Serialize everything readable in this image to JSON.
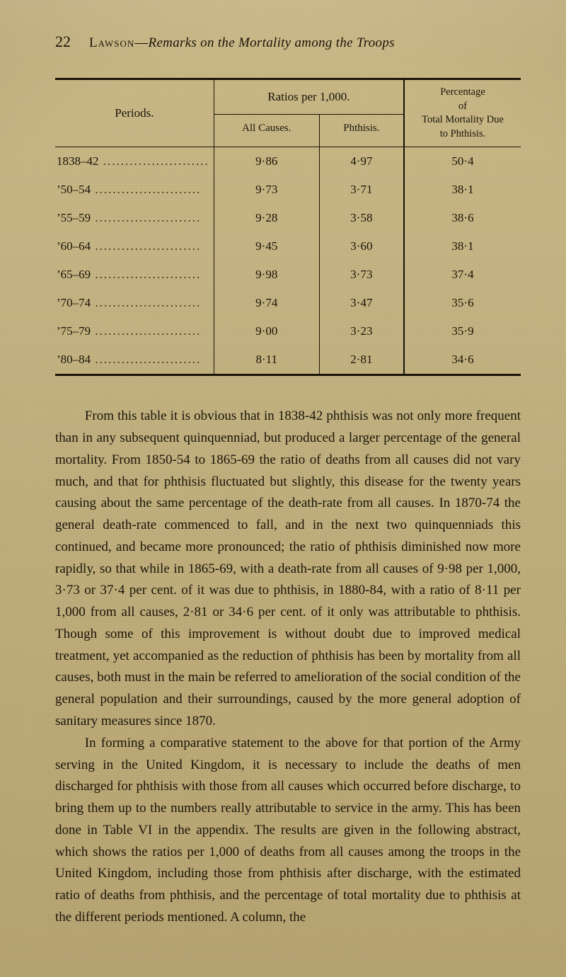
{
  "page_number": "22",
  "running_head": {
    "author_sc": "Lawson",
    "dash": "—",
    "title_italic": "Remarks on the Mortality among the Troops"
  },
  "table": {
    "type": "table",
    "background_color": "transparent",
    "border_color": "#1b1408",
    "font_size_body": 17,
    "font_size_header_small": 15,
    "columns": [
      {
        "key": "period",
        "label": "Periods.",
        "align": "left"
      },
      {
        "key": "all_causes",
        "label": "All Causes.",
        "group": "ratios",
        "align": "center"
      },
      {
        "key": "phthisis",
        "label": "Phthisis.",
        "group": "ratios",
        "align": "center"
      },
      {
        "key": "pct",
        "label_lines": [
          "Percentage",
          "of",
          "Total Mortality Due",
          "to Phthisis."
        ],
        "align": "center"
      }
    ],
    "group_header": "Ratios per 1,000.",
    "rows": [
      {
        "period": "1838–42",
        "all_causes": "9·86",
        "phthisis": "4·97",
        "pct": "50·4"
      },
      {
        "period": "’50–54",
        "all_causes": "9·73",
        "phthisis": "3·71",
        "pct": "38·1"
      },
      {
        "period": "’55–59",
        "all_causes": "9·28",
        "phthisis": "3·58",
        "pct": "38·6"
      },
      {
        "period": "’60–64",
        "all_causes": "9·45",
        "phthisis": "3·60",
        "pct": "38·1"
      },
      {
        "period": "’65–69",
        "all_causes": "9·98",
        "phthisis": "3·73",
        "pct": "37·4"
      },
      {
        "period": "’70–74",
        "all_causes": "9·74",
        "phthisis": "3·47",
        "pct": "35·6"
      },
      {
        "period": "’75–79",
        "all_causes": "9·00",
        "phthisis": "3·23",
        "pct": "35·9"
      },
      {
        "period": "’80–84",
        "all_causes": "8·11",
        "phthisis": "2·81",
        "pct": "34·6"
      }
    ],
    "period_dots": " ........................"
  },
  "paragraphs": [
    "From this table it is obvious that in 1838-42 phthisis was not only more frequent than in any subsequent quinquenniad, but produced a larger percentage of the general mortality. From 1850-54 to 1865-69 the ratio of deaths from all causes did not vary much, and that for phthisis fluctuated but slightly, this disease for the twenty years causing about the same percentage of the death-rate from all causes. In 1870-74 the general death-rate commenced to fall, and in the next two quinquenniads this continued, and became more pronounced; the ratio of phthisis diminished now more rapidly, so that while in 1865-69, with a death-rate from all causes of 9·98 per 1,000, 3·73 or 37·4 per cent. of it was due to phthisis, in 1880-84, with a ratio of 8·11 per 1,000 from all causes, 2·81 or 34·6 per cent. of it only was attributable to phthisis. Though some of this improvement is without doubt due to improved medical treatment, yet accompanied as the reduction of phthisis has been by mortality from all causes, both must in the main be referred to amelioration of the social condition of the general population and their surroundings, caused by the more general adoption of sanitary measures since 1870.",
    "In forming a comparative statement to the above for that portion of the Army serving in the United Kingdom, it is necessary to include the deaths of men discharged for phthisis with those from all causes which occurred before discharge, to bring them up to the numbers really attributable to service in the army. This has been done in Table VI in the appendix. The results are given in the following abstract, which shows the ratios per 1,000 of deaths from all causes among the troops in the United Kingdom, including those from phthisis after discharge, with the estimated ratio of deaths from phthisis, and the percentage of total mortality due to phthisis at the different periods mentioned. A column, the"
  ]
}
